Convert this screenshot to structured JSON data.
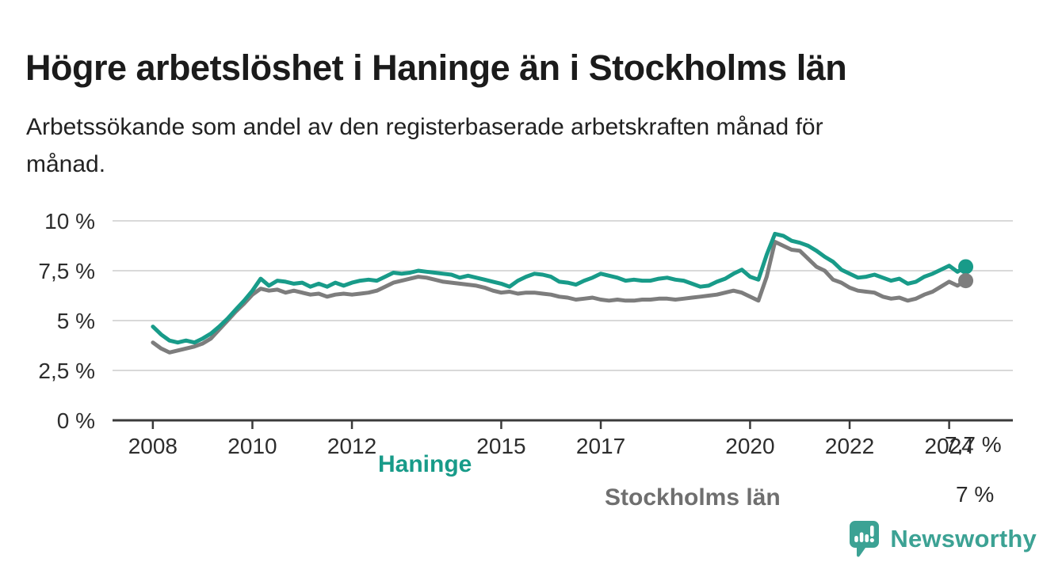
{
  "header": {
    "title": "Högre arbetslöshet i Haninge än i Stockholms län",
    "subtitle": "Arbetssökande som andel av den registerbaserade arbetskraften månad för månad.",
    "subtitle_lines": [
      "Arbetssökande som andel av den registerbaserade arbetskraften månad för",
      "månad."
    ]
  },
  "footer": {
    "brand": "Newsworthy"
  },
  "colors": {
    "haninge": "#189b89",
    "stockholms_lan": "#7d7d7d",
    "stockholms_lan_label": "#6f6f6f",
    "grid": "#d9d9d9",
    "axis": "#3a3a3a",
    "tick_text": "#2d2d2d",
    "annotation_text": "#2a2a2a",
    "logo": "#3ca294",
    "background": "#ffffff"
  },
  "chart_data": {
    "type": "line",
    "title": "Högre arbetslöshet i Haninge än i Stockholms län",
    "xlabel": "",
    "ylabel": "Arbetssökande som andel av den registerbaserade arbetskraften",
    "unit": "%",
    "grid": "horizontal",
    "legend_position": "inline-line-labels",
    "xlim": [
      2007.19,
      2025.28
    ],
    "ylim": [
      0,
      10
    ],
    "x_start": 2008.0,
    "x_points_per_year": 6,
    "x_end": 2024.33,
    "y_ticks": [
      {
        "value": 10,
        "label": "10 %"
      },
      {
        "value": 7.5,
        "label": "7,5 %"
      },
      {
        "value": 5,
        "label": "5 %"
      },
      {
        "value": 2.5,
        "label": "2,5 %"
      },
      {
        "value": 0,
        "label": "0 %"
      }
    ],
    "x_ticks": [
      {
        "value": 2008,
        "label": "2008"
      },
      {
        "value": 2010,
        "label": "2010"
      },
      {
        "value": 2012,
        "label": "2012"
      },
      {
        "value": 2015,
        "label": "2015"
      },
      {
        "value": 2017,
        "label": "2017"
      },
      {
        "value": 2020,
        "label": "2020"
      },
      {
        "value": 2022,
        "label": "2022"
      },
      {
        "value": 2024,
        "label": "2024"
      }
    ],
    "series": [
      {
        "name": "Haninge",
        "color": "#189b89",
        "end_value": 7.7,
        "end_label": "7,7 %",
        "values": [
          4.7,
          4.3,
          4.0,
          3.9,
          4.0,
          3.9,
          4.1,
          4.35,
          4.7,
          5.1,
          5.55,
          6.0,
          6.5,
          7.1,
          6.75,
          7.0,
          6.95,
          6.85,
          6.9,
          6.7,
          6.85,
          6.7,
          6.9,
          6.75,
          6.9,
          7.0,
          7.05,
          7.0,
          7.2,
          7.4,
          7.35,
          7.4,
          7.5,
          7.45,
          7.4,
          7.35,
          7.3,
          7.15,
          7.25,
          7.15,
          7.05,
          6.95,
          6.85,
          6.7,
          7.0,
          7.2,
          7.35,
          7.3,
          7.2,
          6.95,
          6.9,
          6.8,
          7.0,
          7.15,
          7.35,
          7.25,
          7.15,
          7.0,
          7.05,
          7.0,
          7.0,
          7.1,
          7.15,
          7.05,
          7.0,
          6.85,
          6.7,
          6.75,
          6.95,
          7.1,
          7.35,
          7.55,
          7.2,
          7.05,
          8.3,
          9.35,
          9.25,
          9.0,
          8.9,
          8.75,
          8.5,
          8.2,
          7.95,
          7.55,
          7.35,
          7.15,
          7.2,
          7.3,
          7.15,
          7.0,
          7.1,
          6.85,
          6.95,
          7.2,
          7.35,
          7.55,
          7.75,
          7.45,
          7.7
        ]
      },
      {
        "name": "Stockholms län",
        "color": "#7d7d7d",
        "end_value": 7.0,
        "end_label": "7 %",
        "values": [
          3.9,
          3.6,
          3.4,
          3.5,
          3.6,
          3.7,
          3.85,
          4.1,
          4.55,
          5.0,
          5.45,
          5.85,
          6.3,
          6.6,
          6.5,
          6.55,
          6.4,
          6.5,
          6.4,
          6.3,
          6.35,
          6.2,
          6.3,
          6.35,
          6.3,
          6.35,
          6.4,
          6.5,
          6.7,
          6.9,
          7.0,
          7.1,
          7.2,
          7.15,
          7.05,
          6.95,
          6.9,
          6.85,
          6.8,
          6.75,
          6.65,
          6.5,
          6.4,
          6.45,
          6.35,
          6.4,
          6.4,
          6.35,
          6.3,
          6.2,
          6.15,
          6.05,
          6.1,
          6.15,
          6.05,
          6.0,
          6.05,
          6.0,
          6.0,
          6.05,
          6.05,
          6.1,
          6.1,
          6.05,
          6.1,
          6.15,
          6.2,
          6.25,
          6.3,
          6.4,
          6.5,
          6.4,
          6.2,
          6.0,
          7.2,
          8.95,
          8.75,
          8.55,
          8.5,
          8.1,
          7.7,
          7.5,
          7.05,
          6.9,
          6.65,
          6.5,
          6.45,
          6.4,
          6.2,
          6.1,
          6.15,
          6.0,
          6.1,
          6.3,
          6.45,
          6.7,
          6.95,
          6.75,
          7.0
        ]
      }
    ]
  }
}
